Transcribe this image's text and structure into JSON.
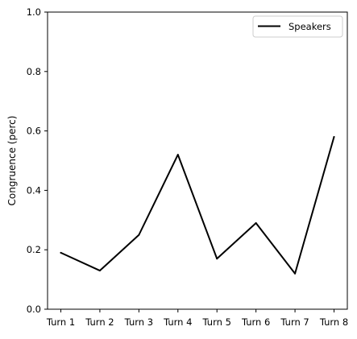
{
  "chart_data": {
    "type": "line",
    "title": "",
    "xlabel": "",
    "ylabel": "Congruence (perc)",
    "categories": [
      "Turn 1",
      "Turn 2",
      "Turn 3",
      "Turn 4",
      "Turn 5",
      "Turn 6",
      "Turn 7",
      "Turn 8"
    ],
    "series": [
      {
        "name": "Speakers",
        "color": "#000000",
        "values": [
          0.19,
          0.13,
          0.25,
          0.52,
          0.17,
          0.29,
          0.12,
          0.58
        ]
      }
    ],
    "ylim": [
      0,
      1
    ],
    "yticks": [
      0.0,
      0.2,
      0.4,
      0.6,
      0.8,
      1.0
    ],
    "ytick_labels": [
      "0.0",
      "0.2",
      "0.4",
      "0.6",
      "0.8",
      "1.0"
    ],
    "grid": false,
    "legend_position": "upper right"
  }
}
